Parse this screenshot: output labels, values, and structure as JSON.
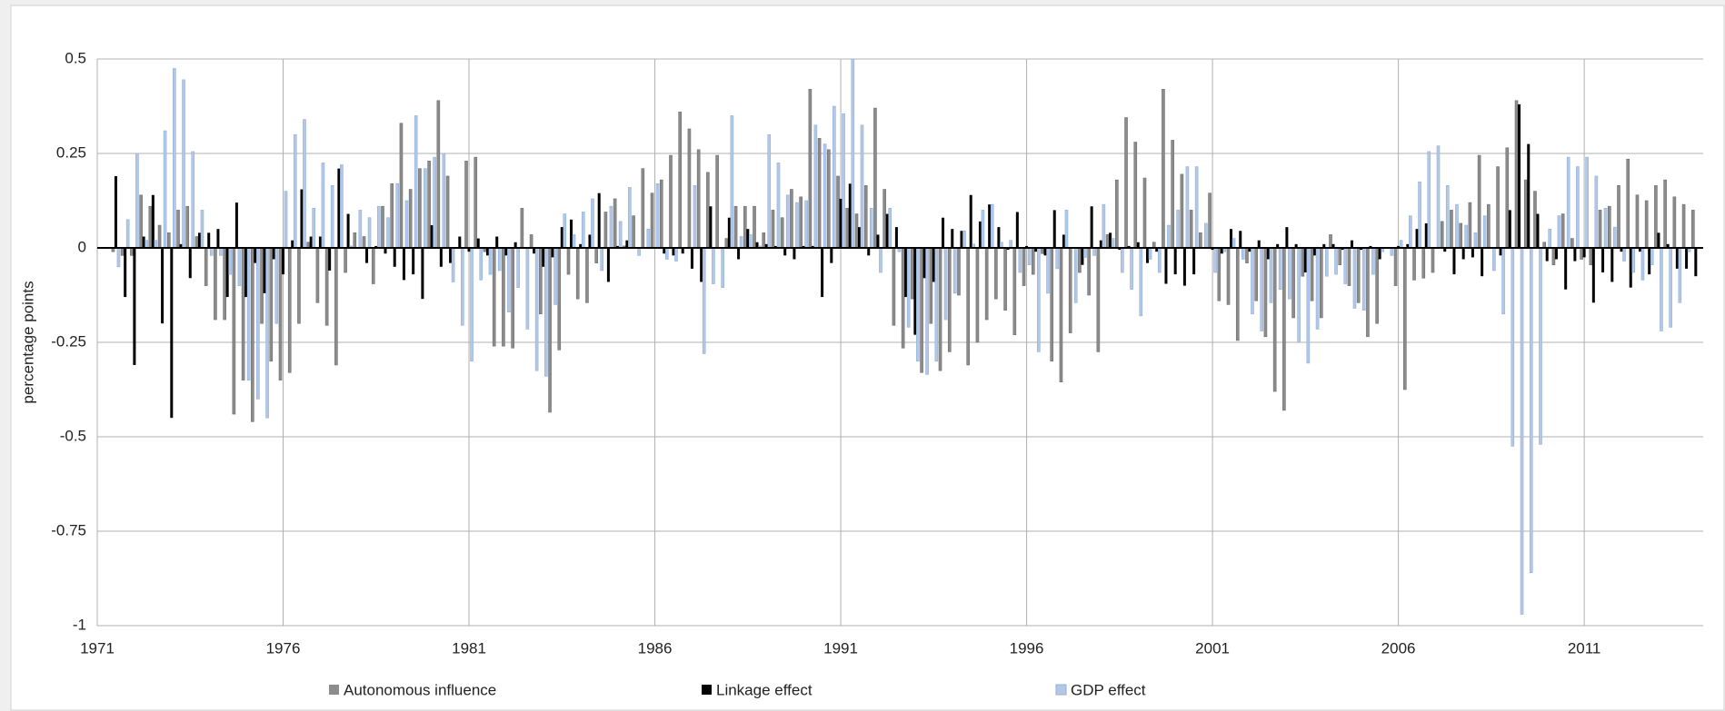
{
  "chart_data": {
    "type": "bar",
    "y_label": "percentage points",
    "x": [
      1971.5,
      1971.75,
      1972,
      1972.25,
      1972.5,
      1972.75,
      1973,
      1973.25,
      1973.5,
      1973.75,
      1974,
      1974.25,
      1974.5,
      1974.75,
      1975,
      1975.25,
      1975.5,
      1975.75,
      1976,
      1976.25,
      1976.5,
      1976.75,
      1977,
      1977.25,
      1977.5,
      1977.75,
      1978,
      1978.25,
      1978.5,
      1978.75,
      1979,
      1979.25,
      1979.5,
      1979.75,
      1980,
      1980.25,
      1980.5,
      1980.75,
      1981,
      1981.25,
      1981.5,
      1981.75,
      1982,
      1982.25,
      1982.5,
      1982.75,
      1983,
      1983.25,
      1983.5,
      1983.75,
      1984,
      1984.25,
      1984.5,
      1984.75,
      1985,
      1985.25,
      1985.5,
      1985.75,
      1986,
      1986.25,
      1986.5,
      1986.75,
      1987,
      1987.25,
      1987.5,
      1987.75,
      1988,
      1988.25,
      1988.5,
      1988.75,
      1989,
      1989.25,
      1989.5,
      1989.75,
      1990,
      1990.25,
      1990.5,
      1990.75,
      1991,
      1991.25,
      1991.5,
      1991.75,
      1992,
      1992.25,
      1992.5,
      1992.75,
      1993,
      1993.25,
      1993.5,
      1993.75,
      1994,
      1994.25,
      1994.5,
      1994.75,
      1995,
      1995.25,
      1995.5,
      1995.75,
      1996,
      1996.25,
      1996.5,
      1996.75,
      1997,
      1997.25,
      1997.5,
      1997.75,
      1998,
      1998.25,
      1998.5,
      1998.75,
      1999,
      1999.25,
      1999.5,
      1999.75,
      2000,
      2000.25,
      2000.5,
      2000.75,
      2001,
      2001.25,
      2001.5,
      2001.75,
      2002,
      2002.25,
      2002.5,
      2002.75,
      2003,
      2003.25,
      2003.5,
      2003.75,
      2004,
      2004.25,
      2004.5,
      2004.75,
      2005,
      2005.25,
      2005.5,
      2005.75,
      2006,
      2006.25,
      2006.5,
      2006.75,
      2007,
      2007.25,
      2007.5,
      2007.75,
      2008,
      2008.25,
      2008.5,
      2008.75,
      2009,
      2009.25,
      2009.5,
      2009.75,
      2010,
      2010.25,
      2010.5,
      2010.75,
      2011,
      2011.25,
      2011.5,
      2011.75,
      2012,
      2012.25,
      2012.5,
      2012.75,
      2013,
      2013.25,
      2013.5,
      2013.75,
      2014
    ],
    "series": [
      {
        "name": "Autonomous influence",
        "color": "#8c8c8c",
        "values": [
          -0.01,
          -0.02,
          -0.02,
          0.14,
          0.11,
          0.06,
          0.04,
          0.1,
          0.11,
          0.03,
          -0.1,
          -0.19,
          -0.19,
          -0.44,
          -0.35,
          -0.46,
          -0.2,
          -0.3,
          -0.35,
          -0.33,
          -0.2,
          0.015,
          -0.145,
          -0.205,
          -0.31,
          -0.065,
          0.04,
          0.03,
          -0.095,
          0.11,
          0.17,
          0.33,
          0.155,
          0.21,
          0.23,
          0.39,
          0.19,
          0,
          0.23,
          0.24,
          -0.01,
          -0.26,
          -0.26,
          -0.265,
          0.105,
          0.035,
          -0.175,
          -0.435,
          -0.27,
          -0.07,
          -0.135,
          -0.145,
          -0.04,
          0.095,
          0.13,
          0.005,
          0.085,
          0.21,
          0.145,
          0.18,
          0.245,
          0.36,
          0.315,
          0.26,
          0.2,
          0.245,
          0.025,
          0.11,
          0.11,
          0.11,
          0.04,
          0.1,
          0.08,
          0.155,
          0.135,
          0.42,
          0.29,
          0.26,
          0.19,
          0.105,
          0.09,
          0.165,
          0.37,
          0.155,
          -0.205,
          -0.265,
          -0.135,
          -0.33,
          -0.2,
          -0.325,
          -0.275,
          -0.125,
          -0.31,
          -0.25,
          -0.19,
          -0.135,
          -0.165,
          -0.23,
          -0.1,
          -0.07,
          -0.015,
          -0.3,
          -0.355,
          -0.225,
          -0.065,
          -0.125,
          -0.275,
          0.035,
          0.18,
          0.345,
          0.28,
          0.185,
          0.015,
          0.42,
          0.285,
          0.195,
          0.1,
          0.04,
          0.145,
          -0.14,
          -0.15,
          -0.245,
          -0.04,
          -0.14,
          -0.235,
          -0.38,
          -0.43,
          -0.185,
          -0.075,
          -0.14,
          -0.185,
          0.035,
          -0.045,
          -0.1,
          -0.145,
          -0.235,
          -0.2,
          0,
          -0.1,
          -0.375,
          -0.085,
          -0.08,
          -0.065,
          0.07,
          0.1,
          0.065,
          0.12,
          0.245,
          0.115,
          0.215,
          0.265,
          0.39,
          0.18,
          0.15,
          0.015,
          -0.045,
          0.09,
          0.025,
          -0.03,
          -0.045,
          0.1,
          0.11,
          0.165,
          0.235,
          0.14,
          0.125,
          0.165,
          0.18,
          0.135,
          0.115,
          0.1
        ]
      },
      {
        "name": "Linkage effect",
        "color": "#000000",
        "values": [
          0.19,
          -0.13,
          -0.31,
          0.03,
          0.14,
          -0.2,
          -0.45,
          0.01,
          -0.08,
          0.04,
          0.04,
          0.05,
          -0.13,
          0.12,
          -0.13,
          -0.04,
          -0.12,
          -0.03,
          -0.07,
          0.02,
          0.155,
          0.03,
          0.03,
          -0.06,
          0.21,
          0.09,
          0,
          -0.04,
          0.005,
          -0.015,
          -0.05,
          -0.085,
          -0.07,
          -0.135,
          0.06,
          -0.05,
          -0.04,
          0.03,
          -0.01,
          0.025,
          -0.02,
          0.03,
          -0.02,
          0.015,
          0,
          -0.015,
          -0.05,
          -0.025,
          0.055,
          0.075,
          0.01,
          0.035,
          0.145,
          -0.09,
          0.005,
          0.02,
          0,
          0,
          0,
          -0.015,
          -0.02,
          -0.015,
          -0.055,
          -0.09,
          0.11,
          0,
          0.08,
          -0.03,
          0.05,
          0.015,
          0.01,
          0.005,
          -0.02,
          -0.03,
          0.005,
          0.005,
          -0.13,
          -0.04,
          0.13,
          0.17,
          0.055,
          -0.02,
          0.035,
          0.09,
          0.055,
          -0.13,
          -0.23,
          -0.08,
          -0.09,
          0.08,
          0.05,
          0.045,
          0.14,
          0.07,
          0.115,
          0.055,
          -0.005,
          0.095,
          0.005,
          -0.01,
          -0.02,
          0.1,
          0.035,
          0,
          -0.045,
          0.11,
          0.02,
          0.04,
          -0.005,
          0.005,
          0.015,
          -0.04,
          -0.01,
          -0.095,
          -0.07,
          -0.1,
          -0.07,
          0,
          -0.005,
          -0.015,
          0.05,
          0.045,
          -0.01,
          0.02,
          -0.03,
          0.01,
          0.055,
          0.01,
          -0.065,
          -0.02,
          0.01,
          0.01,
          -0.005,
          0.02,
          -0.005,
          0.005,
          -0.03,
          0,
          0.005,
          0.01,
          0.05,
          0.065,
          0,
          -0.01,
          -0.07,
          -0.03,
          -0.025,
          -0.075,
          0,
          -0.02,
          0.1,
          0.38,
          0.275,
          0.09,
          -0.035,
          -0.03,
          -0.11,
          -0.035,
          -0.025,
          -0.145,
          -0.065,
          -0.09,
          -0.01,
          -0.105,
          -0.01,
          -0.07,
          0.04,
          0.01,
          -0.055,
          -0.055,
          -0.075
        ]
      },
      {
        "name": "GDP effect",
        "color": "#b4c8e6",
        "values": [
          -0.05,
          0.075,
          0.25,
          0.02,
          0.02,
          0.31,
          0.475,
          0.445,
          0.255,
          0.1,
          -0.02,
          -0.02,
          -0.07,
          -0.1,
          -0.35,
          -0.4,
          -0.45,
          -0.2,
          0.15,
          0.3,
          0.34,
          0.105,
          0.225,
          0.165,
          0.22,
          0.005,
          0.1,
          0.08,
          0.11,
          0.08,
          0.17,
          0.125,
          0.35,
          0.21,
          0.24,
          0.25,
          -0.09,
          -0.205,
          -0.3,
          -0.085,
          -0.07,
          -0.06,
          -0.17,
          -0.105,
          -0.215,
          -0.325,
          -0.34,
          -0.15,
          0.09,
          0.035,
          0.095,
          0.13,
          -0.06,
          0.11,
          0.07,
          0.16,
          -0.02,
          0.05,
          0.17,
          -0.03,
          -0.035,
          0,
          0.165,
          -0.28,
          -0.095,
          -0.105,
          0.35,
          0.03,
          0.035,
          0.005,
          0.3,
          0.225,
          0.14,
          0.12,
          0.125,
          0.325,
          0.275,
          0.375,
          0.355,
          0.5,
          0.325,
          0.105,
          -0.065,
          0.105,
          -0.01,
          -0.21,
          -0.3,
          -0.335,
          -0.3,
          -0.19,
          -0.12,
          0.045,
          0.01,
          0.1,
          0.115,
          0.015,
          0.02,
          -0.065,
          -0.045,
          -0.275,
          -0.12,
          -0.055,
          0.1,
          -0.145,
          -0.025,
          -0.02,
          0.115,
          0.025,
          -0.065,
          -0.11,
          -0.18,
          -0.03,
          -0.065,
          0.06,
          0.1,
          0.215,
          0.215,
          0.065,
          -0.065,
          -0.01,
          0.025,
          -0.03,
          -0.175,
          -0.22,
          -0.145,
          -0.11,
          -0.135,
          -0.25,
          -0.305,
          -0.215,
          -0.075,
          -0.07,
          -0.095,
          -0.16,
          -0.165,
          -0.07,
          -0.01,
          -0.02,
          0.02,
          0.085,
          0.175,
          0.255,
          0.27,
          0.165,
          0.115,
          0.06,
          0.04,
          0.085,
          -0.06,
          -0.175,
          -0.525,
          -0.97,
          -0.86,
          -0.52,
          0.05,
          0.085,
          0.24,
          0.215,
          0.24,
          0.19,
          0.105,
          0.055,
          -0.035,
          -0.065,
          -0.085,
          -0.045,
          -0.22,
          -0.21,
          -0.145,
          -0.01,
          0
        ]
      }
    ],
    "xlim": [
      1971,
      2014.2
    ],
    "xticks": [
      1971,
      1976,
      1981,
      1986,
      1991,
      1996,
      2001,
      2006,
      2011
    ],
    "ylim": [
      -1,
      0.5
    ],
    "yticks": [
      -1,
      -0.75,
      -0.5,
      -0.25,
      0,
      0.25,
      0.5
    ],
    "grid": true,
    "legend": "bottom"
  }
}
